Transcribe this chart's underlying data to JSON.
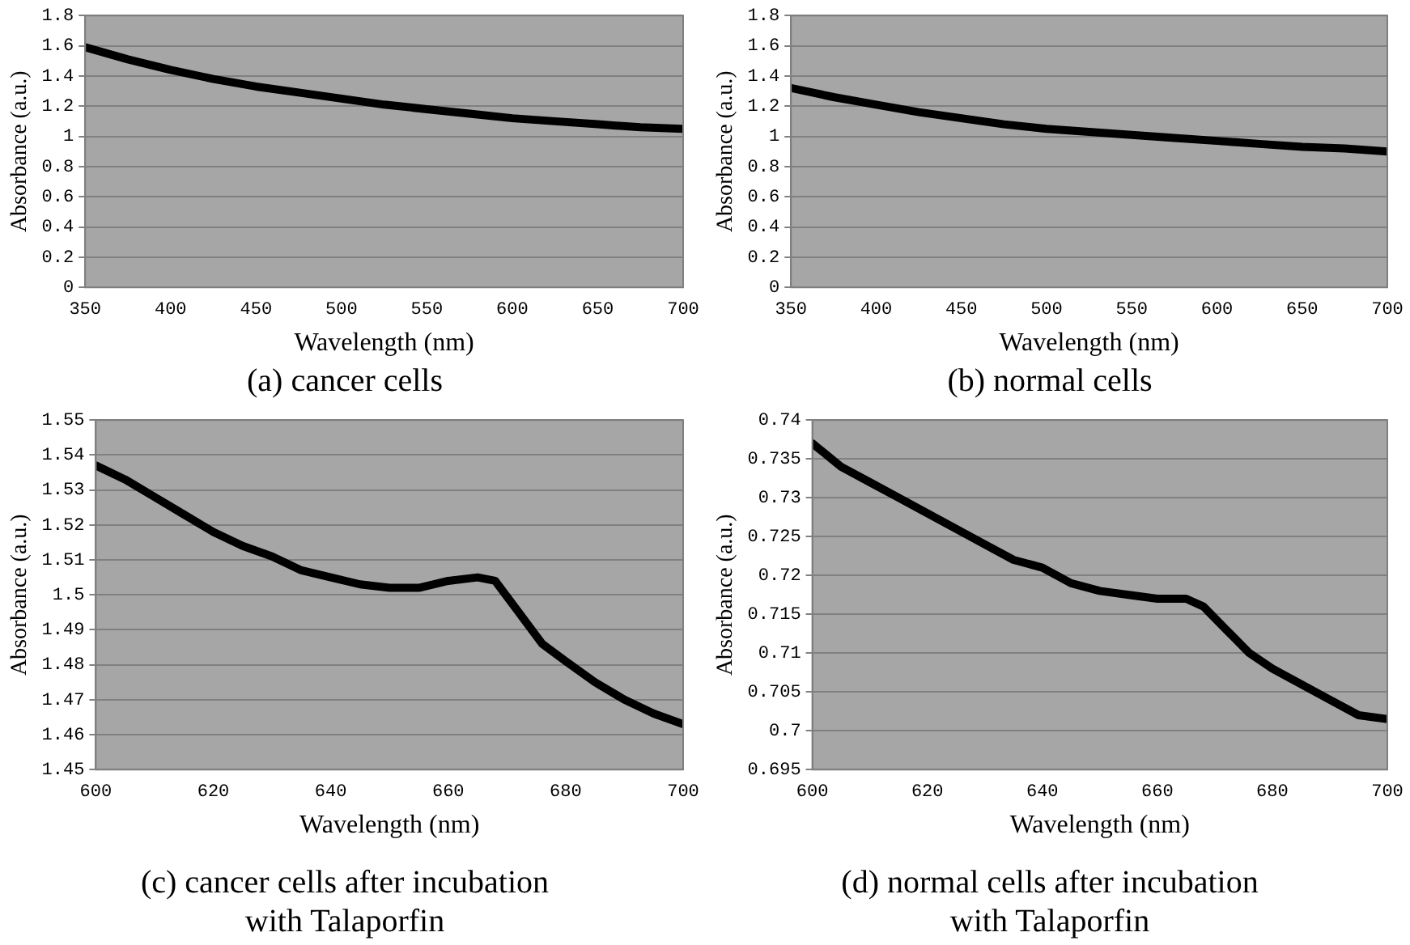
{
  "chart_data": [
    {
      "type": "line",
      "title": "(a) cancer cells",
      "xlabel": "Wavelength (nm)",
      "ylabel": "Absorbance (a.u.)",
      "xlim": [
        350,
        700
      ],
      "xticks": [
        350,
        400,
        450,
        500,
        550,
        600,
        650,
        700
      ],
      "ylim": [
        0,
        1.8
      ],
      "yticks": [
        0,
        0.2,
        0.4,
        0.6,
        0.8,
        1,
        1.2,
        1.4,
        1.6,
        1.8
      ],
      "grid": "y",
      "line_style": "solid",
      "series": [
        {
          "color": "#000000",
          "x": [
            350,
            375,
            400,
            425,
            450,
            475,
            500,
            525,
            550,
            575,
            600,
            625,
            650,
            675,
            700
          ],
          "values": [
            1.59,
            1.51,
            1.44,
            1.38,
            1.33,
            1.29,
            1.25,
            1.21,
            1.18,
            1.15,
            1.12,
            1.1,
            1.08,
            1.06,
            1.05
          ]
        }
      ]
    },
    {
      "type": "line",
      "title": "(b) normal cells",
      "xlabel": "Wavelength (nm)",
      "ylabel": "Absorbance (a.u.)",
      "xlim": [
        350,
        700
      ],
      "xticks": [
        350,
        400,
        450,
        500,
        550,
        600,
        650,
        700
      ],
      "ylim": [
        0,
        1.8
      ],
      "yticks": [
        0,
        0.2,
        0.4,
        0.6,
        0.8,
        1,
        1.2,
        1.4,
        1.6,
        1.8
      ],
      "grid": "y",
      "line_style": "solid",
      "series": [
        {
          "color": "#000000",
          "x": [
            350,
            375,
            400,
            425,
            450,
            475,
            500,
            525,
            550,
            575,
            600,
            625,
            650,
            675,
            700
          ],
          "values": [
            1.32,
            1.26,
            1.21,
            1.16,
            1.12,
            1.08,
            1.05,
            1.03,
            1.01,
            0.99,
            0.97,
            0.95,
            0.93,
            0.92,
            0.9
          ]
        }
      ]
    },
    {
      "type": "line",
      "title": "(c) cancer cells after incubation\nwith Talaporfin",
      "xlabel": "Wavelength (nm)",
      "ylabel": "Absorbance (a.u.)",
      "xlim": [
        600,
        700
      ],
      "xticks": [
        600,
        620,
        640,
        660,
        680,
        700
      ],
      "ylim": [
        1.45,
        1.55
      ],
      "yticks": [
        1.45,
        1.46,
        1.47,
        1.48,
        1.49,
        1.5,
        1.51,
        1.52,
        1.53,
        1.54,
        1.55
      ],
      "grid": "y",
      "line_style": "solid",
      "series": [
        {
          "color": "#000000",
          "x": [
            600,
            605,
            610,
            615,
            620,
            625,
            630,
            635,
            640,
            645,
            650,
            655,
            660,
            665,
            668,
            672,
            676,
            680,
            685,
            690,
            695,
            700
          ],
          "values": [
            1.537,
            1.533,
            1.528,
            1.523,
            1.518,
            1.514,
            1.511,
            1.507,
            1.505,
            1.503,
            1.502,
            1.502,
            1.504,
            1.505,
            1.504,
            1.495,
            1.486,
            1.481,
            1.475,
            1.47,
            1.466,
            1.463
          ]
        }
      ]
    },
    {
      "type": "line",
      "title": "(d) normal cells after incubation\nwith Talaporfin",
      "xlabel": "Wavelength (nm)",
      "ylabel": "Absorbance (a.u.)",
      "xlim": [
        600,
        700
      ],
      "xticks": [
        600,
        620,
        640,
        660,
        680,
        700
      ],
      "ylim": [
        0.695,
        0.74
      ],
      "yticks": [
        0.695,
        0.7,
        0.705,
        0.71,
        0.715,
        0.72,
        0.725,
        0.73,
        0.735,
        0.74
      ],
      "grid": "y",
      "line_style": "solid",
      "series": [
        {
          "color": "#000000",
          "x": [
            600,
            605,
            610,
            615,
            620,
            625,
            630,
            635,
            640,
            645,
            650,
            655,
            660,
            665,
            668,
            672,
            676,
            680,
            685,
            690,
            695,
            700
          ],
          "values": [
            0.737,
            0.734,
            0.732,
            0.73,
            0.728,
            0.726,
            0.724,
            0.722,
            0.721,
            0.719,
            0.718,
            0.7175,
            0.717,
            0.717,
            0.716,
            0.713,
            0.71,
            0.708,
            0.706,
            0.704,
            0.702,
            0.7015
          ]
        }
      ]
    }
  ]
}
